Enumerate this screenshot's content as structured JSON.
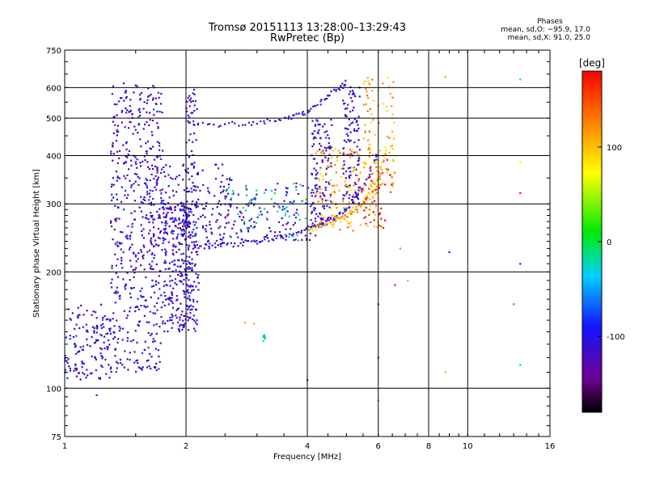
{
  "header": {
    "title_line1": "Tromsø 20151113 13:28:00–13:29:43",
    "title_line2": "RwPretec (Bp)",
    "stats_title": "Phases",
    "stats_o": "mean, sd,O: −95.9, 17.0",
    "stats_x": "mean, sd,X:  91.0, 25.0"
  },
  "chart_data": {
    "type": "scatter",
    "xlabel": "Frequency [MHz]",
    "ylabel": "Stationary phase Virtual Height [km]",
    "x_scale": "log",
    "y_scale": "log",
    "xlim": [
      1,
      16
    ],
    "ylim": [
      75,
      750
    ],
    "x_ticks": [
      1,
      2,
      4,
      6,
      8,
      10,
      16
    ],
    "y_ticks": [
      75,
      100,
      200,
      300,
      400,
      500,
      600,
      750
    ],
    "grid": true,
    "colorbar": {
      "label": "[deg]",
      "ticks": [
        100,
        0,
        -100
      ],
      "range": [
        -180,
        180
      ]
    },
    "series": [
      {
        "color_value": -110,
        "clusters": [
          {
            "fmin": 1.0,
            "fmax": 1.3,
            "hmin": 105,
            "hmax": 165,
            "n": 140
          },
          {
            "fmin": 1.3,
            "fmax": 1.75,
            "hmin": 110,
            "hmax": 620,
            "n": 520
          },
          {
            "fmin": 1.75,
            "fmax": 2.05,
            "hmin": 140,
            "hmax": 300,
            "n": 260
          },
          {
            "fmin": 2.0,
            "fmax": 2.15,
            "hmin": 140,
            "hmax": 600,
            "n": 140
          },
          {
            "fmin": 1.6,
            "fmax": 2.6,
            "hmin": 230,
            "hmax": 380,
            "n": 190
          },
          {
            "fmin": 2.4,
            "fmax": 4.2,
            "hmin": 240,
            "hmax": 340,
            "n": 130
          },
          {
            "fmin": 4.1,
            "fmax": 4.6,
            "hmin": 260,
            "hmax": 500,
            "n": 120
          },
          {
            "fmin": 4.9,
            "fmax": 5.4,
            "hmin": 300,
            "hmax": 620,
            "n": 110
          }
        ],
        "curves": [
          {
            "x": [
              2.0,
              2.5,
              3.0,
              3.5,
              4.0,
              4.5,
              5.0,
              5.5,
              6.0
            ],
            "y": [
              232,
              235,
              240,
              248,
              258,
              270,
              290,
              330,
              410
            ]
          },
          {
            "x": [
              2.1,
              2.8,
              3.5,
              4.0,
              4.5,
              5.0
            ],
            "y": [
              480,
              485,
              495,
              520,
              570,
              620
            ]
          }
        ]
      },
      {
        "color_value": 110,
        "clusters": [
          {
            "fmin": 4.2,
            "fmax": 6.0,
            "hmin": 255,
            "hmax": 420,
            "n": 150
          },
          {
            "fmin": 5.5,
            "fmax": 6.6,
            "hmin": 330,
            "hmax": 640,
            "n": 90
          }
        ],
        "curves": [
          {
            "x": [
              4.0,
              4.5,
              5.0,
              5.5,
              6.0,
              6.3
            ],
            "y": [
              258,
              265,
              280,
              300,
              350,
              420
            ]
          }
        ]
      },
      {
        "color_value": -20,
        "clusters": [
          {
            "fmin": 2.5,
            "fmax": 4.0,
            "hmin": 240,
            "hmax": 340,
            "n": 50
          },
          {
            "fmin": 3.1,
            "fmax": 3.2,
            "hmin": 130,
            "hmax": 140,
            "n": 6
          }
        ],
        "curves": []
      },
      {
        "color_value": 170,
        "clusters": [
          {
            "fmin": 5.5,
            "fmax": 6.5,
            "hmin": 260,
            "hmax": 420,
            "n": 40
          }
        ],
        "curves": []
      }
    ],
    "sparse_points": [
      {
        "x": 6.0,
        "y": 93,
        "v": -20
      },
      {
        "x": 6.0,
        "y": 120,
        "v": 180
      },
      {
        "x": 6.0,
        "y": 165,
        "v": 180
      },
      {
        "x": 6.8,
        "y": 230,
        "v": -20
      },
      {
        "x": 8.8,
        "y": 110,
        "v": 110
      },
      {
        "x": 8.8,
        "y": 640,
        "v": 110
      },
      {
        "x": 9.0,
        "y": 225,
        "v": -100
      },
      {
        "x": 13.5,
        "y": 210,
        "v": -100
      },
      {
        "x": 13.5,
        "y": 115,
        "v": -20
      },
      {
        "x": 13.5,
        "y": 385,
        "v": 60
      },
      {
        "x": 13.5,
        "y": 320,
        "v": 180
      },
      {
        "x": 13.5,
        "y": 630,
        "v": -30
      },
      {
        "x": 13.0,
        "y": 165,
        "v": 150
      },
      {
        "x": 1.2,
        "y": 96,
        "v": -110
      },
      {
        "x": 4.0,
        "y": 105,
        "v": -100
      },
      {
        "x": 2.8,
        "y": 148,
        "v": 110
      },
      {
        "x": 2.95,
        "y": 147,
        "v": 110
      },
      {
        "x": 6.6,
        "y": 185,
        "v": 180
      },
      {
        "x": 7.1,
        "y": 190,
        "v": 110
      }
    ]
  }
}
